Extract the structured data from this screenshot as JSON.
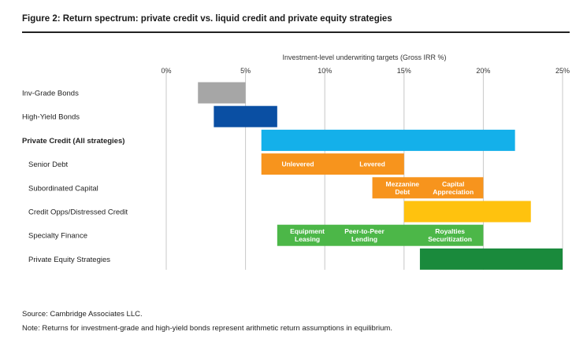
{
  "figure": {
    "title": "Figure 2: Return spectrum: private credit vs. liquid credit and private equity strategies",
    "source": "Source: Cambridge Associates LLC.",
    "note": "Note: Returns for investment-grade and high-yield bonds represent arithmetic return assumptions in equilibrium."
  },
  "chart_data": {
    "type": "bar",
    "orientation": "horizontal-range",
    "xlabel": "Investment-level underwriting targets (Gross IRR %)",
    "xlim": [
      0,
      25
    ],
    "xticks": [
      0,
      5,
      10,
      15,
      20,
      25
    ],
    "xtick_labels": [
      "0%",
      "5%",
      "10%",
      "15%",
      "20%",
      "25%"
    ],
    "axis_position": "top",
    "grid": true,
    "categories": [
      {
        "label": "Inv-Grade Bonds",
        "bold": false,
        "indent": false
      },
      {
        "label": "High-Yield Bonds",
        "bold": false,
        "indent": false
      },
      {
        "label": "Private Credit (All strategies)",
        "bold": true,
        "indent": false
      },
      {
        "label": "Senior Debt",
        "bold": false,
        "indent": true
      },
      {
        "label": "Subordinated Capital",
        "bold": false,
        "indent": true
      },
      {
        "label": "Credit Opps/Distressed Credit",
        "bold": false,
        "indent": true
      },
      {
        "label": "Specialty Finance",
        "bold": false,
        "indent": true
      },
      {
        "label": "Private Equity Strategies",
        "bold": false,
        "indent": true
      }
    ],
    "ranges": [
      {
        "row": 0,
        "start": 2,
        "end": 5,
        "color": "#a6a6a6"
      },
      {
        "row": 1,
        "start": 3,
        "end": 7,
        "color": "#0a4fa3"
      },
      {
        "row": 2,
        "start": 6,
        "end": 22,
        "color": "#14b0ea"
      },
      {
        "row": 3,
        "start": 6,
        "end": 15,
        "color": "#f7941d",
        "segments": [
          {
            "label": "Unlevered",
            "center": 8.3
          },
          {
            "label": "Levered",
            "center": 13
          }
        ]
      },
      {
        "row": 4,
        "start": 13,
        "end": 20,
        "color": "#f7941d",
        "segments": [
          {
            "label": "Mezzanine\nDebt",
            "center": 14.9
          },
          {
            "label": "Capital\nAppreciation",
            "center": 18.1
          }
        ]
      },
      {
        "row": 5,
        "start": 15,
        "end": 23,
        "color": "#ffc20e"
      },
      {
        "row": 6,
        "start": 7,
        "end": 20,
        "color": "#4cb748",
        "segments": [
          {
            "label": "Equipment\nLeasing",
            "center": 8.9
          },
          {
            "label": "Peer-to-Peer\nLending",
            "center": 12.5
          },
          {
            "label": "Royalties\nSecuritization",
            "center": 17.9
          }
        ]
      },
      {
        "row": 7,
        "start": 16,
        "end": 25,
        "color": "#1a8a3c"
      }
    ]
  }
}
